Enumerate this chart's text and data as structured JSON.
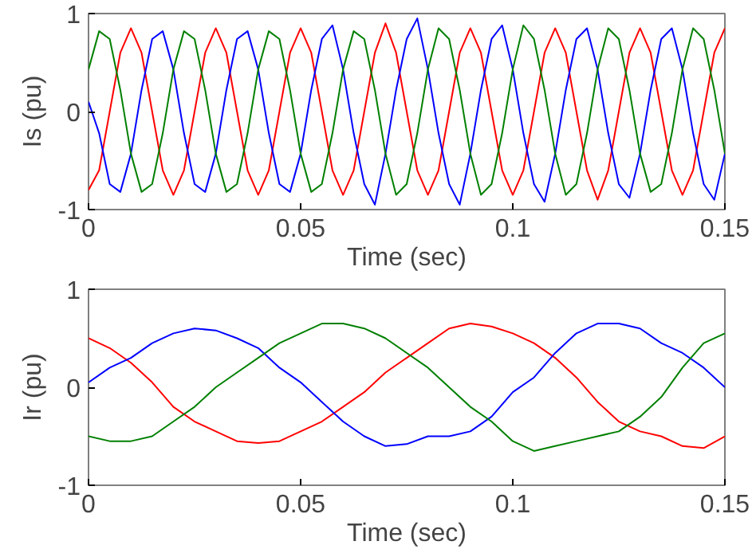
{
  "chart_data": [
    {
      "type": "line",
      "xlabel": "Time (sec)",
      "ylabel": "Is (pu)",
      "xlim": [
        0,
        0.15
      ],
      "ylim": [
        -1,
        1
      ],
      "xticks": [
        0,
        0.05,
        0.1,
        0.15
      ],
      "yticks": [
        -1,
        0,
        1
      ],
      "x": [
        0,
        0.0025,
        0.005,
        0.0075,
        0.01,
        0.0125,
        0.015,
        0.0175,
        0.02,
        0.0225,
        0.025,
        0.0275,
        0.03,
        0.0325,
        0.035,
        0.0375,
        0.04,
        0.0425,
        0.045,
        0.0475,
        0.05,
        0.0525,
        0.055,
        0.0575,
        0.06,
        0.0625,
        0.065,
        0.0675,
        0.07,
        0.0725,
        0.075,
        0.0775,
        0.08,
        0.0825,
        0.085,
        0.0875,
        0.09,
        0.0925,
        0.095,
        0.0975,
        0.1,
        0.1025,
        0.105,
        0.1075,
        0.11,
        0.1125,
        0.115,
        0.1175,
        0.12,
        0.1225,
        0.125,
        0.1275,
        0.13,
        0.1325,
        0.135,
        0.1375,
        0.14,
        0.1425,
        0.145,
        0.1475,
        0.15
      ],
      "series": [
        {
          "color": "#ff0000",
          "values": [
            -0.8,
            -0.6,
            0,
            0.6,
            0.85,
            0.6,
            0,
            -0.6,
            -0.85,
            -0.6,
            0,
            0.6,
            0.85,
            0.6,
            0,
            -0.6,
            -0.85,
            -0.6,
            0,
            0.6,
            0.85,
            0.6,
            0,
            -0.6,
            -0.85,
            -0.6,
            0,
            0.6,
            0.9,
            0.6,
            0,
            -0.6,
            -0.85,
            -0.6,
            0,
            0.6,
            0.85,
            0.6,
            0,
            -0.6,
            -0.85,
            -0.6,
            0,
            0.6,
            0.85,
            0.6,
            0,
            -0.6,
            -0.9,
            -0.6,
            0,
            0.6,
            0.85,
            0.6,
            0,
            -0.6,
            -0.85,
            -0.6,
            0,
            0.6,
            0.85
          ]
        },
        {
          "color": "#0000ff",
          "values": [
            0.1,
            -0.22,
            -0.74,
            -0.82,
            -0.43,
            0.22,
            0.74,
            0.82,
            0.43,
            -0.22,
            -0.74,
            -0.82,
            -0.43,
            0.22,
            0.74,
            0.82,
            0.43,
            -0.22,
            -0.74,
            -0.82,
            -0.43,
            0.22,
            0.74,
            0.88,
            0.43,
            -0.22,
            -0.74,
            -0.95,
            -0.43,
            0.22,
            0.74,
            0.95,
            0.43,
            -0.22,
            -0.74,
            -0.95,
            -0.43,
            0.22,
            0.74,
            0.88,
            0.43,
            -0.22,
            -0.74,
            -0.92,
            -0.43,
            0.22,
            0.74,
            0.85,
            0.43,
            -0.22,
            -0.74,
            -0.88,
            -0.43,
            0.22,
            0.74,
            0.85,
            0.43,
            -0.22,
            -0.74,
            -0.9,
            -0.43
          ]
        },
        {
          "color": "#008000",
          "values": [
            0.43,
            0.82,
            0.74,
            0.22,
            -0.43,
            -0.82,
            -0.74,
            -0.22,
            0.43,
            0.82,
            0.74,
            0.22,
            -0.43,
            -0.82,
            -0.74,
            -0.22,
            0.43,
            0.82,
            0.74,
            0.22,
            -0.43,
            -0.82,
            -0.74,
            -0.22,
            0.43,
            0.82,
            0.74,
            0.22,
            -0.43,
            -0.85,
            -0.74,
            -0.22,
            0.43,
            0.85,
            0.74,
            0.22,
            -0.43,
            -0.85,
            -0.74,
            -0.22,
            0.43,
            0.88,
            0.74,
            0.22,
            -0.43,
            -0.85,
            -0.74,
            -0.22,
            0.43,
            0.85,
            0.74,
            0.22,
            -0.43,
            -0.82,
            -0.74,
            -0.22,
            0.43,
            0.85,
            0.74,
            0.22,
            -0.43
          ]
        }
      ]
    },
    {
      "type": "line",
      "xlabel": "Time (sec)",
      "ylabel": "Ir (pu)",
      "xlim": [
        0,
        0.15
      ],
      "ylim": [
        -1,
        1
      ],
      "xticks": [
        0,
        0.05,
        0.1,
        0.15
      ],
      "yticks": [
        -1,
        0,
        1
      ],
      "x": [
        0,
        0.005,
        0.01,
        0.015,
        0.02,
        0.025,
        0.03,
        0.035,
        0.04,
        0.045,
        0.05,
        0.055,
        0.06,
        0.065,
        0.07,
        0.075,
        0.08,
        0.085,
        0.09,
        0.095,
        0.1,
        0.105,
        0.11,
        0.115,
        0.12,
        0.125,
        0.13,
        0.135,
        0.14,
        0.145,
        0.15
      ],
      "series": [
        {
          "color": "#ff0000",
          "values": [
            0.5,
            0.4,
            0.25,
            0.05,
            -0.2,
            -0.35,
            -0.45,
            -0.55,
            -0.57,
            -0.55,
            -0.45,
            -0.35,
            -0.2,
            -0.05,
            0.15,
            0.3,
            0.45,
            0.6,
            0.65,
            0.62,
            0.55,
            0.45,
            0.3,
            0.1,
            -0.15,
            -0.35,
            -0.45,
            -0.5,
            -0.6,
            -0.62,
            -0.5
          ]
        },
        {
          "color": "#0000ff",
          "values": [
            0.05,
            0.2,
            0.3,
            0.45,
            0.55,
            0.6,
            0.58,
            0.5,
            0.4,
            0.2,
            0.05,
            -0.15,
            -0.35,
            -0.5,
            -0.6,
            -0.58,
            -0.5,
            -0.5,
            -0.45,
            -0.3,
            -0.05,
            0.1,
            0.35,
            0.55,
            0.65,
            0.65,
            0.6,
            0.45,
            0.35,
            0.2,
            0.0
          ]
        },
        {
          "color": "#008000",
          "values": [
            -0.5,
            -0.55,
            -0.55,
            -0.5,
            -0.35,
            -0.2,
            0.0,
            0.15,
            0.3,
            0.45,
            0.55,
            0.65,
            0.65,
            0.6,
            0.5,
            0.35,
            0.2,
            0.0,
            -0.2,
            -0.35,
            -0.55,
            -0.65,
            -0.6,
            -0.55,
            -0.5,
            -0.45,
            -0.3,
            -0.1,
            0.2,
            0.45,
            0.55
          ]
        }
      ]
    }
  ]
}
